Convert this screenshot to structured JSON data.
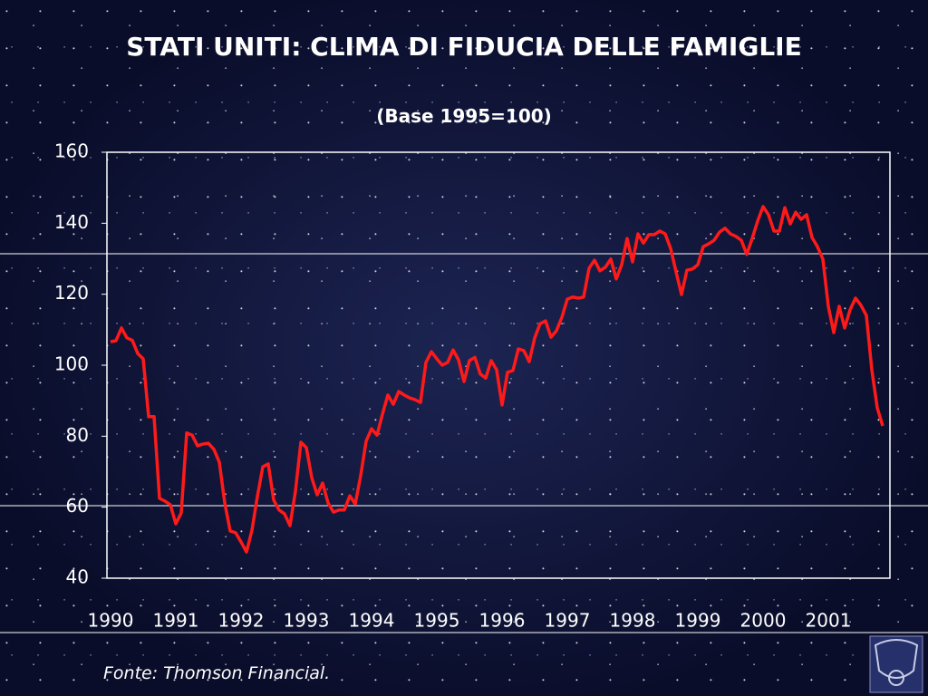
{
  "chart_data": {
    "type": "line",
    "title": "STATI UNITI: CLIMA DI FIDUCIA DELLE FAMIGLIE",
    "subtitle": "(Base 1995=100)",
    "source": "Fonte:  Thomson Financial.",
    "color": "#ff1a1a",
    "ylim": [
      40,
      160
    ],
    "yticks": [
      40,
      60,
      80,
      100,
      120,
      140,
      160
    ],
    "categories": [
      "1990",
      null,
      null,
      null,
      null,
      null,
      null,
      null,
      null,
      null,
      null,
      null,
      "1991",
      null,
      null,
      null,
      null,
      null,
      null,
      null,
      null,
      null,
      null,
      null,
      "1992",
      null,
      null,
      null,
      null,
      null,
      null,
      null,
      null,
      null,
      null,
      null,
      "1993",
      null,
      null,
      null,
      null,
      null,
      null,
      null,
      null,
      null,
      null,
      null,
      "1994",
      null,
      null,
      null,
      null,
      null,
      null,
      null,
      null,
      null,
      null,
      null,
      "1995",
      null,
      null,
      null,
      null,
      null,
      null,
      null,
      null,
      null,
      null,
      null,
      "1996",
      null,
      null,
      null,
      null,
      null,
      null,
      null,
      null,
      null,
      null,
      null,
      "1997",
      null,
      null,
      null,
      null,
      null,
      null,
      null,
      null,
      null,
      null,
      null,
      "1998",
      null,
      null,
      null,
      null,
      null,
      null,
      null,
      null,
      null,
      null,
      null,
      "1999",
      null,
      null,
      null,
      null,
      null,
      null,
      null,
      null,
      null,
      null,
      null,
      "2000",
      null,
      null,
      null,
      null,
      null,
      null,
      null,
      null,
      null,
      null,
      null,
      "2001",
      null,
      null,
      null,
      null,
      null,
      null,
      null,
      null,
      null,
      null
    ],
    "values": [
      106.6,
      106.9,
      110.5,
      107.7,
      107,
      103.3,
      101.8,
      85.5,
      85.5,
      62.5,
      61.7,
      60.7,
      55.3,
      58.4,
      80.9,
      80.3,
      77.3,
      77.8,
      78,
      76.3,
      72.7,
      61.2,
      53.3,
      52.8,
      50.2,
      47.4,
      53.5,
      63,
      71.4,
      72.2,
      62,
      59.2,
      58.1,
      54.8,
      64.5,
      78.3,
      76.8,
      68.3,
      63.5,
      66.8,
      61.2,
      58.6,
      59.2,
      59.2,
      63.2,
      60.9,
      68.9,
      78.6,
      82.1,
      80.3,
      86.2,
      91.6,
      89,
      92.6,
      91.6,
      90.8,
      90.3,
      89.5,
      100.8,
      103.8,
      101.8,
      100,
      100.8,
      104.3,
      101.5,
      95.4,
      101.3,
      102.2,
      97.5,
      96.4,
      101.3,
      98.7,
      88.8,
      98,
      98.5,
      104.6,
      104.1,
      101,
      107.7,
      111.7,
      112.5,
      107.9,
      109.7,
      113.5,
      118.6,
      119.2,
      118.9,
      119.2,
      127.3,
      129.6,
      126.6,
      127.6,
      129.9,
      124.3,
      128.3,
      135.7,
      129.1,
      137,
      134.4,
      136.8,
      136.8,
      137.8,
      137,
      132.9,
      126.3,
      119.9,
      126.8,
      127.1,
      128.3,
      133.4,
      134.2,
      135.2,
      137.5,
      138.6,
      137,
      136.3,
      135.2,
      131.2,
      135.7,
      140.6,
      144.7,
      142.4,
      137.8,
      137.8,
      144.4,
      139.8,
      143.1,
      141.1,
      142.4,
      136,
      133.4,
      129.9,
      116.6,
      109.2,
      116.6,
      110.5,
      115.6,
      118.9,
      116.9,
      114,
      98.7,
      88,
      82.9
    ]
  }
}
